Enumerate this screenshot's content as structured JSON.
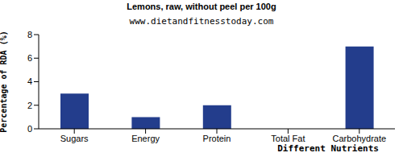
{
  "chart_data": {
    "type": "bar",
    "title": "Lemons, raw, without peel per 100g",
    "subtitle": "www.dietandfitnesstoday.com",
    "x_label": "Different Nutrients",
    "y_label": "Percentage of RDA (%)",
    "categories": [
      "Sugars",
      "Energy",
      "Protein",
      "Total Fat",
      "Carbohydrate"
    ],
    "values": [
      3,
      1,
      2,
      0,
      7
    ],
    "color": "#233d8c",
    "ylim": [
      0,
      8
    ],
    "yticks": [
      0,
      2,
      4,
      6,
      8
    ],
    "grid": false
  }
}
